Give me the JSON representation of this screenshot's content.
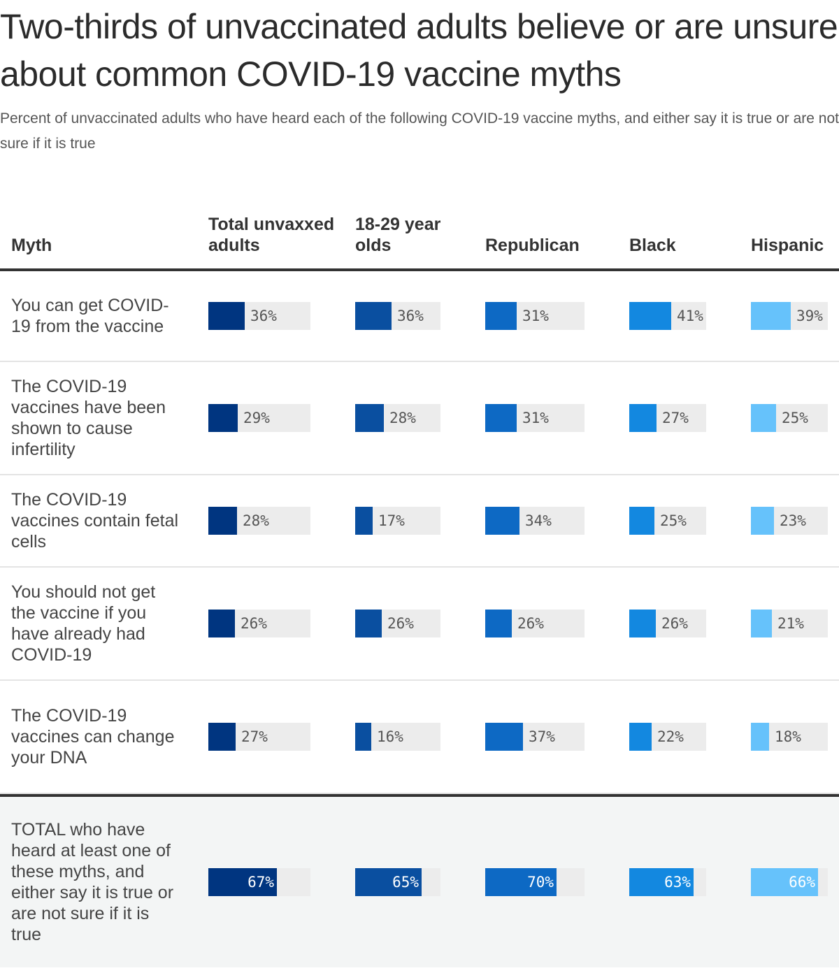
{
  "title": "Two-thirds of unvaccinated adults believe or are unsure about common COVID-19 vaccine myths",
  "subtitle": "Percent of unvaccinated adults who have heard each of the following COVID-19 vaccine myths, and either say it is true or are not sure if it is true",
  "chart_data": {
    "type": "bar",
    "columns": [
      {
        "key": "total",
        "label": "Total unvaxxed adults",
        "color": "#003580"
      },
      {
        "key": "age",
        "label": "18-29 year olds",
        "color": "#0a4fa0"
      },
      {
        "key": "rep",
        "label": "Republican",
        "color": "#0d69c4"
      },
      {
        "key": "black",
        "label": "Black",
        "color": "#1388e0"
      },
      {
        "key": "hisp",
        "label": "Hispanic",
        "color": "#66c2fb"
      }
    ],
    "row_header": "Myth",
    "rows": [
      {
        "label": "You can get COVID-19 from the vaccine",
        "values": [
          36,
          36,
          31,
          41,
          39
        ],
        "display": [
          "36%",
          "36%",
          "31%",
          "41%",
          "39%"
        ]
      },
      {
        "label": "The COVID-19 vaccines have been shown to cause infertility",
        "values": [
          29,
          28,
          31,
          27,
          25
        ],
        "display": [
          "29%",
          "28%",
          "31%",
          "27%",
          "25%"
        ]
      },
      {
        "label": "The COVID-19 vaccines contain fetal cells",
        "values": [
          28,
          17,
          34,
          25,
          23
        ],
        "display": [
          "28%",
          "17%",
          "34%",
          "25%",
          "23%"
        ]
      },
      {
        "label": "You should not get the vaccine if you have already had COVID-19",
        "values": [
          26,
          26,
          26,
          26,
          21
        ],
        "display": [
          "26%",
          "26%",
          "26%",
          "26%",
          "21%"
        ]
      },
      {
        "label": "The COVID-19 vaccines can change your DNA",
        "values": [
          27,
          16,
          37,
          22,
          18
        ],
        "display": [
          "27%",
          "16%",
          "37%",
          "22%",
          "18%"
        ]
      },
      {
        "label": "TOTAL who have heard at least one of these myths, and either say it is true or are not sure if it is true",
        "values": [
          67,
          65,
          70,
          63,
          66
        ],
        "display": [
          "67%",
          "65%",
          "70%",
          "63%",
          "66%"
        ],
        "total": true
      }
    ],
    "value_max": 100
  }
}
